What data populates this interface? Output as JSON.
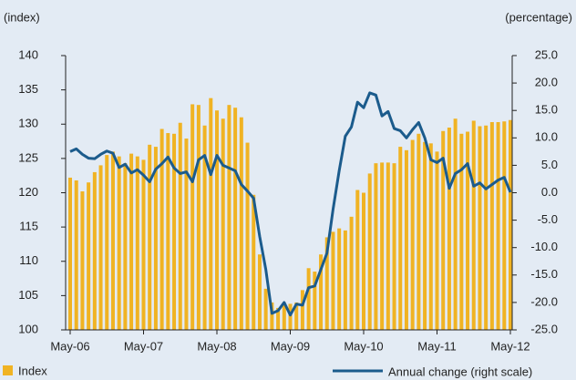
{
  "chart_data": {
    "type": "bar",
    "y_label": "(index)",
    "y2_label": "(percentage)",
    "categories": [
      "May-06",
      null,
      null,
      null,
      null,
      null,
      null,
      null,
      null,
      null,
      null,
      null,
      "May-07",
      null,
      null,
      null,
      null,
      null,
      null,
      null,
      null,
      null,
      null,
      null,
      "May-08",
      null,
      null,
      null,
      null,
      null,
      null,
      null,
      null,
      null,
      null,
      null,
      "May-09",
      null,
      null,
      null,
      null,
      null,
      null,
      null,
      null,
      null,
      null,
      null,
      "May-10",
      null,
      null,
      null,
      null,
      null,
      null,
      null,
      null,
      null,
      null,
      null,
      "May-11",
      null,
      null,
      null,
      null,
      null,
      null,
      null,
      null,
      null,
      null,
      null,
      "May-12"
    ],
    "series": [
      {
        "name": "Index",
        "type": "bar",
        "color": "#f0b323",
        "values": [
          122.2,
          121.8,
          120.2,
          121.5,
          123.0,
          124.0,
          125.5,
          126.0,
          125.3,
          124.3,
          125.7,
          125.3,
          124.8,
          127.0,
          126.7,
          129.3,
          128.7,
          128.6,
          130.2,
          127.9,
          132.9,
          132.8,
          129.8,
          133.8,
          132.0,
          130.8,
          132.8,
          132.4,
          131.0,
          127.3,
          119.7,
          111.0,
          106.0,
          104.0,
          103.2,
          103.9,
          103.8,
          104.0,
          105.8,
          109.0,
          108.5,
          111.0,
          113.5,
          114.3,
          114.8,
          114.5,
          116.5,
          120.4,
          120.0,
          122.8,
          124.3,
          124.4,
          124.4,
          124.3,
          126.7,
          126.2,
          127.7,
          128.6,
          127.4,
          127.2,
          126.0,
          129.0,
          129.5,
          130.8,
          128.6,
          128.9,
          130.5,
          129.7,
          129.8,
          130.3,
          130.3,
          130.4,
          130.6
        ]
      },
      {
        "name": "Annual change (right scale)",
        "type": "line",
        "axis": "y2",
        "color": "#1b5b8c",
        "values": [
          7.5,
          8.0,
          7.0,
          6.3,
          6.2,
          7.0,
          7.6,
          7.2,
          4.6,
          5.2,
          3.6,
          4.2,
          3.2,
          2.0,
          4.3,
          5.3,
          6.5,
          4.5,
          3.5,
          3.8,
          2.0,
          6.0,
          6.8,
          3.3,
          6.8,
          5.0,
          4.5,
          4.0,
          1.5,
          0.3,
          -1.0,
          -8.0,
          -14.0,
          -22.0,
          -21.5,
          -20.0,
          -22.3,
          -20.3,
          -20.5,
          -17.3,
          -17.0,
          -14.0,
          -11.0,
          -3.0,
          4.0,
          10.3,
          12.0,
          16.5,
          15.5,
          18.2,
          17.8,
          14.0,
          14.8,
          11.7,
          11.3,
          10.0,
          11.5,
          12.8,
          10.0,
          6.0,
          5.5,
          6.3,
          0.8,
          3.5,
          4.2,
          5.3,
          1.2,
          1.8,
          0.7,
          1.5,
          2.3,
          2.8,
          0.1
        ]
      }
    ],
    "ylim": [
      100,
      140
    ],
    "yticks": [
      100,
      105,
      110,
      115,
      120,
      125,
      130,
      135,
      140
    ],
    "y2lim": [
      -25,
      25
    ],
    "y2ticks": [
      {
        "value": -25,
        "label": "-25.0"
      },
      {
        "value": -20,
        "label": "-20.0"
      },
      {
        "value": -15,
        "label": "-15.0"
      },
      {
        "value": -10,
        "label": "-10.0"
      },
      {
        "value": -5,
        "label": "-5.0"
      },
      {
        "value": 0,
        "label": "0.0"
      },
      {
        "value": 5,
        "label": "5.0"
      },
      {
        "value": 10,
        "label": "10.0"
      },
      {
        "value": 15,
        "label": "15.0"
      },
      {
        "value": 20,
        "label": "20.0"
      },
      {
        "value": 25,
        "label": "25.0"
      }
    ],
    "grid": false
  }
}
